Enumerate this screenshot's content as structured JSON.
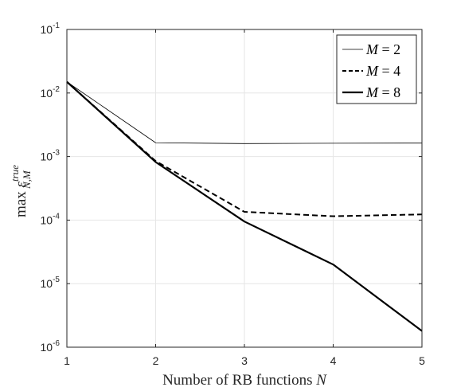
{
  "chart_data": {
    "type": "line",
    "title": "",
    "xlabel": {
      "text": "Number of RB functions ",
      "var": "N"
    },
    "ylabel": {
      "prefix": "max ",
      "base": "ε",
      "sub": "N,M",
      "sup": "true"
    },
    "x": [
      1,
      2,
      3,
      4,
      5
    ],
    "xlim": [
      1,
      5
    ],
    "ylim": [
      1e-06,
      0.1
    ],
    "yscale": "log",
    "grid": true,
    "legend_position": "top-right",
    "xticks": [
      "1",
      "2",
      "3",
      "4",
      "5"
    ],
    "yticks": [
      {
        "value": 0.1,
        "base": "10",
        "exp": "-1"
      },
      {
        "value": 0.01,
        "base": "10",
        "exp": "-2"
      },
      {
        "value": 0.001,
        "base": "10",
        "exp": "-3"
      },
      {
        "value": 0.0001,
        "base": "10",
        "exp": "-4"
      },
      {
        "value": 1e-05,
        "base": "10",
        "exp": "-5"
      },
      {
        "value": 1e-06,
        "base": "10",
        "exp": "-6"
      }
    ],
    "series": [
      {
        "name": "M = 2",
        "var": "M",
        "eq": " = 2",
        "style": "thin",
        "color": "#000000",
        "values": [
          0.015,
          0.00165,
          0.0016,
          0.00162,
          0.00163
        ]
      },
      {
        "name": "M = 4",
        "var": "M",
        "eq": " = 4",
        "style": "dashed",
        "color": "#000000",
        "values": [
          0.015,
          0.00085,
          0.000135,
          0.000115,
          0.000123
        ]
      },
      {
        "name": "M = 8",
        "var": "M",
        "eq": " = 8",
        "style": "thick",
        "color": "#000000",
        "values": [
          0.015,
          0.00082,
          9.5e-05,
          2e-05,
          1.8e-06
        ]
      }
    ]
  }
}
